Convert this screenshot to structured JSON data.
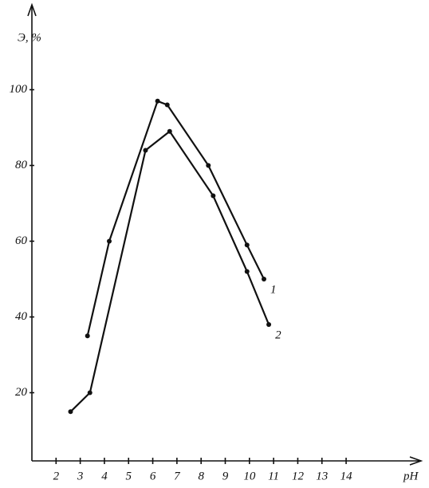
{
  "chart_data": {
    "type": "line",
    "y_label": "Э, %",
    "x_label": "pH",
    "series": [
      {
        "name": "1",
        "color": "#111111",
        "x": [
          3.3,
          4.2,
          6.2,
          6.6,
          8.3,
          9.9,
          10.6
        ],
        "values": [
          35,
          60,
          97,
          96,
          80,
          59,
          50
        ]
      },
      {
        "name": "2",
        "color": "#111111",
        "x": [
          2.6,
          3.4,
          5.7,
          6.7,
          8.5,
          9.9,
          10.8
        ],
        "values": [
          15,
          20,
          84,
          89,
          72,
          52,
          38
        ]
      }
    ],
    "xlim": [
      1,
      17
    ],
    "xticks": [
      2,
      3,
      4,
      5,
      6,
      7,
      8,
      9,
      10,
      11,
      12,
      13,
      14
    ],
    "ylim": [
      2,
      122
    ],
    "yticks": [
      20,
      40,
      60,
      80,
      100
    ]
  }
}
